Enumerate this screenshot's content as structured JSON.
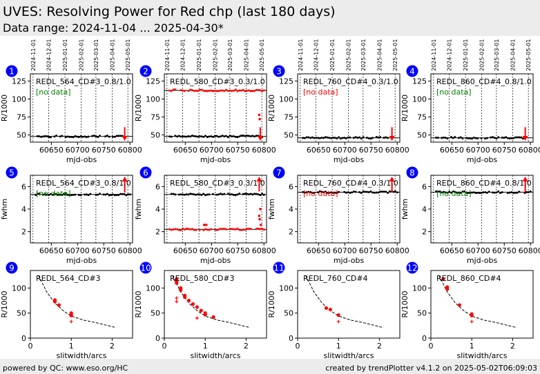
{
  "header": {
    "title": "UVES: Resolving Power for Red chp (last 180 days)",
    "subtitle": "Data range: 2024-11-04 ... 2025-04-30*"
  },
  "footer": {
    "left": "powered by QC: www.eso.org/HC",
    "right": "created by trendPlotter v4.1.2 on 2025-05-02T06:09:03"
  },
  "colors": {
    "accent": "#ff0000",
    "badge": "#0000ff",
    "no_data_red": "#ff0000",
    "no_data_green": "#008000",
    "header_bg": "#ececec"
  },
  "date_ticks": [
    "2024-11-01",
    "2024-12-01",
    "2025-01-01",
    "2025-02-01",
    "2025-03-01",
    "2025-04-01",
    "2025-05-01"
  ],
  "chart_data": [
    {
      "id": 1,
      "type": "scatter",
      "title": "REDL_564_CD#3_0.8/1.0",
      "note": "[no data]",
      "note_color": "green",
      "xlabel": "mjd-obs",
      "ylabel": "R/1000",
      "xlim": [
        60610,
        60805
      ],
      "ylim": [
        40,
        135
      ],
      "yticks": [
        50,
        75,
        100,
        125
      ],
      "xticks": [
        60650,
        60700,
        60750,
        60800
      ],
      "ref_lines": [
        48
      ],
      "series": [
        {
          "name": "",
          "y_level": 48,
          "x_range": [
            60620,
            60790
          ]
        }
      ],
      "markers": [
        {
          "x": 60790,
          "y": 55,
          "dir": "down"
        }
      ]
    },
    {
      "id": 2,
      "type": "scatter",
      "title": "REDL_580_CD#3_0.3/1.0",
      "note": "",
      "xlabel": "mjd-obs",
      "ylabel": "R/1000",
      "xlim": [
        60610,
        60805
      ],
      "ylim": [
        40,
        135
      ],
      "yticks": [
        50,
        75,
        100,
        125
      ],
      "xticks": [
        60650,
        60700,
        60750,
        60800
      ],
      "ref_lines": [
        112,
        48
      ],
      "series": [
        {
          "name": "",
          "y_level": 112,
          "x_range": [
            60620,
            60800
          ]
        },
        {
          "name": "",
          "y_level": 48,
          "x_range": [
            60620,
            60800
          ]
        }
      ],
      "extra_points": [
        [
          60791,
          78
        ],
        [
          60792,
          72
        ]
      ],
      "markers": [
        {
          "x": 60793,
          "y": 55,
          "dir": "down"
        }
      ]
    },
    {
      "id": 3,
      "type": "scatter",
      "title": "REDL_760_CD#4_0.3/1.0",
      "note": "[no data]",
      "note_color": "red",
      "xlabel": "mjd-obs",
      "ylabel": "R/1000",
      "xlim": [
        60610,
        60805
      ],
      "ylim": [
        40,
        135
      ],
      "yticks": [
        50,
        75,
        100,
        125
      ],
      "xticks": [
        60650,
        60700,
        60750,
        60800
      ],
      "ref_lines": [
        46
      ],
      "series": [
        {
          "name": "",
          "y_level": 46,
          "x_range": [
            60620,
            60790
          ]
        }
      ],
      "markers": [
        {
          "x": 60790,
          "y": 55,
          "dir": "down"
        }
      ]
    },
    {
      "id": 4,
      "type": "scatter",
      "title": "REDL_860_CD#4_0.8/1.0",
      "note": "[no data]",
      "note_color": "green",
      "xlabel": "mjd-obs",
      "ylabel": "R/1000",
      "xlim": [
        60610,
        60805
      ],
      "ylim": [
        40,
        135
      ],
      "yticks": [
        50,
        75,
        100,
        125
      ],
      "xticks": [
        60650,
        60700,
        60750,
        60800
      ],
      "ref_lines": [
        46
      ],
      "series": [
        {
          "name": "",
          "y_level": 46,
          "x_range": [
            60620,
            60790
          ]
        }
      ],
      "markers": [
        {
          "x": 60790,
          "y": 55,
          "dir": "down"
        }
      ]
    },
    {
      "id": 5,
      "type": "scatter",
      "title": "REDL_564_CD#3_0.8/1.0",
      "note": "[no data]",
      "note_color": "green",
      "xlabel": "mjd-obs",
      "ylabel": "fwhm",
      "xlim": [
        60610,
        60805
      ],
      "ylim": [
        1,
        7
      ],
      "yticks": [
        2,
        4,
        6
      ],
      "xticks": [
        60650,
        60700,
        60750,
        60800
      ],
      "ref_lines": [
        5.3
      ],
      "series": [
        {
          "name": "",
          "y_level": 5.3,
          "x_range": [
            60620,
            60800
          ]
        }
      ],
      "markers": [
        {
          "x": 60790,
          "y": 6.2,
          "dir": "up"
        }
      ]
    },
    {
      "id": 6,
      "type": "scatter",
      "title": "REDL_580_CD#3_0.3/1.0",
      "note": "",
      "xlabel": "mjd-obs",
      "ylabel": "fwhm",
      "xlim": [
        60610,
        60805
      ],
      "ylim": [
        1,
        7
      ],
      "yticks": [
        2,
        4,
        6
      ],
      "xticks": [
        60650,
        60700,
        60750,
        60800
      ],
      "ref_lines": [
        5.3,
        2.2
      ],
      "series": [
        {
          "name": "",
          "y_level": 5.3,
          "x_range": [
            60620,
            60800
          ]
        },
        {
          "name": "",
          "y_level": 2.2,
          "x_range": [
            60620,
            60800
          ]
        }
      ],
      "extra_points": [
        [
          60791,
          3.4
        ],
        [
          60792,
          3.1
        ],
        [
          60793,
          4.0
        ],
        [
          60794,
          2.6
        ],
        [
          60686,
          2.6
        ],
        [
          60690,
          2.6
        ]
      ],
      "markers": [
        {
          "x": 60791,
          "y": 6.3,
          "dir": "up"
        }
      ]
    },
    {
      "id": 7,
      "type": "scatter",
      "title": "REDL_760_CD#4_0.3/1.0",
      "note": "[no data]",
      "note_color": "red",
      "xlabel": "mjd-obs",
      "ylabel": "fwhm",
      "xlim": [
        60610,
        60805
      ],
      "ylim": [
        1,
        7
      ],
      "yticks": [
        2,
        4,
        6
      ],
      "xticks": [
        60650,
        60700,
        60750,
        60800
      ],
      "ref_lines": [
        5.5
      ],
      "series": [
        {
          "name": "",
          "y_level": 5.5,
          "x_range": [
            60620,
            60800
          ]
        }
      ],
      "markers": [
        {
          "x": 60790,
          "y": 6.2,
          "dir": "up"
        }
      ]
    },
    {
      "id": 8,
      "type": "scatter",
      "title": "REDL_860_CD#4_0.8/1.0",
      "note": "[no data]",
      "note_color": "green",
      "xlabel": "mjd-obs",
      "ylabel": "fwhm",
      "xlim": [
        60610,
        60805
      ],
      "ylim": [
        1,
        7
      ],
      "yticks": [
        2,
        4,
        6
      ],
      "xticks": [
        60650,
        60700,
        60750,
        60800
      ],
      "ref_lines": [
        5.5
      ],
      "series": [
        {
          "name": "",
          "y_level": 5.5,
          "x_range": [
            60620,
            60800
          ]
        }
      ],
      "markers": [
        {
          "x": 60790,
          "y": 6.2,
          "dir": "up"
        }
      ]
    },
    {
      "id": 9,
      "type": "scatter",
      "title": "REDL_564_CD#3",
      "xlabel": "slitwidth/arcs",
      "ylabel": "R/1000",
      "xlim": [
        0,
        2.5
      ],
      "ylim": [
        0,
        135
      ],
      "yticks": [
        0,
        50,
        100
      ],
      "xticks": [
        0,
        1,
        2
      ],
      "curve": [
        [
          0.2,
          125
        ],
        [
          0.4,
          92
        ],
        [
          0.6,
          70
        ],
        [
          0.8,
          55
        ],
        [
          1.0,
          44
        ],
        [
          1.3,
          36
        ],
        [
          1.6,
          31
        ],
        [
          1.9,
          25
        ],
        [
          2.1,
          21
        ]
      ],
      "points": [
        [
          0.6,
          76
        ],
        [
          0.6,
          73
        ],
        [
          0.7,
          66
        ],
        [
          1.0,
          50
        ],
        [
          1.0,
          47
        ],
        [
          1.0,
          45
        ]
      ],
      "plus_points": [
        [
          1.0,
          33
        ]
      ]
    },
    {
      "id": 10,
      "type": "scatter",
      "title": "REDL_580_CD#3",
      "xlabel": "slitwidth/arcs",
      "ylabel": "R/1000",
      "xlim": [
        0,
        2.5
      ],
      "ylim": [
        0,
        135
      ],
      "yticks": [
        0,
        50,
        100
      ],
      "xticks": [
        0,
        1,
        2
      ],
      "curve": [
        [
          0.2,
          125
        ],
        [
          0.4,
          92
        ],
        [
          0.6,
          70
        ],
        [
          0.8,
          55
        ],
        [
          1.0,
          44
        ],
        [
          1.3,
          36
        ],
        [
          1.6,
          31
        ],
        [
          1.9,
          25
        ],
        [
          2.1,
          21
        ]
      ],
      "points": [
        [
          0.3,
          118
        ],
        [
          0.3,
          114
        ],
        [
          0.3,
          110
        ],
        [
          0.4,
          100
        ],
        [
          0.4,
          96
        ],
        [
          0.5,
          85
        ],
        [
          0.5,
          82
        ],
        [
          0.6,
          75
        ],
        [
          0.7,
          68
        ],
        [
          0.8,
          62
        ],
        [
          0.9,
          55
        ],
        [
          1.0,
          50
        ],
        [
          1.0,
          47
        ],
        [
          1.2,
          42
        ]
      ],
      "plus_points": [
        [
          0.3,
          80
        ],
        [
          0.3,
          73
        ],
        [
          0.8,
          40
        ]
      ]
    },
    {
      "id": 11,
      "type": "scatter",
      "title": "REDL_760_CD#4",
      "xlabel": "slitwidth/arcs",
      "ylabel": "R/1000",
      "xlim": [
        0,
        2.5
      ],
      "ylim": [
        0,
        135
      ],
      "yticks": [
        0,
        50,
        100
      ],
      "xticks": [
        0,
        1,
        2
      ],
      "curve": [
        [
          0.2,
          125
        ],
        [
          0.4,
          92
        ],
        [
          0.6,
          70
        ],
        [
          0.8,
          55
        ],
        [
          1.0,
          44
        ],
        [
          1.3,
          36
        ],
        [
          1.6,
          31
        ],
        [
          1.9,
          25
        ],
        [
          2.1,
          21
        ]
      ],
      "points": [
        [
          0.7,
          60
        ],
        [
          0.8,
          57
        ],
        [
          1.0,
          46
        ]
      ],
      "plus_points": [
        [
          1.0,
          33
        ]
      ]
    },
    {
      "id": 12,
      "type": "scatter",
      "title": "REDL_860_CD#4",
      "xlabel": "slitwidth/arcs",
      "ylabel": "R/1000",
      "xlim": [
        0,
        2.5
      ],
      "ylim": [
        0,
        135
      ],
      "yticks": [
        0,
        50,
        100
      ],
      "xticks": [
        0,
        1,
        2
      ],
      "curve": [
        [
          0.2,
          125
        ],
        [
          0.4,
          92
        ],
        [
          0.6,
          70
        ],
        [
          0.8,
          55
        ],
        [
          1.0,
          44
        ],
        [
          1.3,
          36
        ],
        [
          1.6,
          31
        ],
        [
          1.9,
          25
        ],
        [
          2.1,
          21
        ]
      ],
      "points": [
        [
          0.3,
          118
        ],
        [
          0.4,
          102
        ],
        [
          0.4,
          98
        ],
        [
          0.7,
          66
        ],
        [
          1.0,
          48
        ],
        [
          1.0,
          45
        ]
      ],
      "plus_points": [
        [
          1.0,
          33
        ]
      ]
    }
  ]
}
